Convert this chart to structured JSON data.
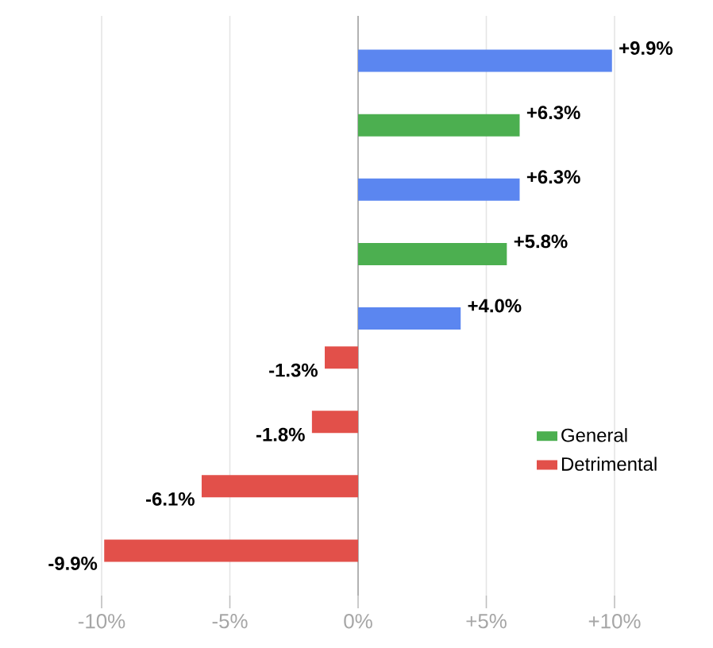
{
  "chart_data": {
    "type": "bar",
    "orientation": "horizontal",
    "categories": [
      null,
      null,
      null,
      null,
      null,
      null,
      null,
      null,
      null
    ],
    "series": [
      {
        "color": "#5b86f0",
        "values": [
          9.9,
          null,
          6.3,
          null,
          4.0,
          null,
          null,
          null,
          null
        ],
        "value_labels": [
          "+9.9%",
          null,
          "+6.3%",
          null,
          "+4.0%",
          null,
          null,
          null,
          null
        ]
      },
      {
        "name": "General",
        "color": "#4caf50",
        "values": [
          null,
          6.3,
          null,
          5.8,
          null,
          null,
          null,
          null,
          null
        ],
        "value_labels": [
          null,
          "+6.3%",
          null,
          "+5.8%",
          null,
          null,
          null,
          null,
          null
        ]
      },
      {
        "name": "Detrimental",
        "color": "#e2504a",
        "values": [
          null,
          null,
          null,
          null,
          null,
          -1.3,
          -1.8,
          -6.1,
          -9.9
        ],
        "value_labels": [
          null,
          null,
          null,
          null,
          null,
          "-1.3%",
          "-1.8%",
          "-6.1%",
          "-9.9%"
        ]
      }
    ],
    "xlim": [
      -10,
      10
    ],
    "xticks": [
      {
        "value": -10,
        "label": "-10%"
      },
      {
        "value": -5,
        "label": "-5%"
      },
      {
        "value": 0,
        "label": "0%"
      },
      {
        "value": 5,
        "label": "+5%"
      },
      {
        "value": 10,
        "label": "+10%"
      }
    ],
    "grid": "x",
    "legend": "bottom right"
  }
}
